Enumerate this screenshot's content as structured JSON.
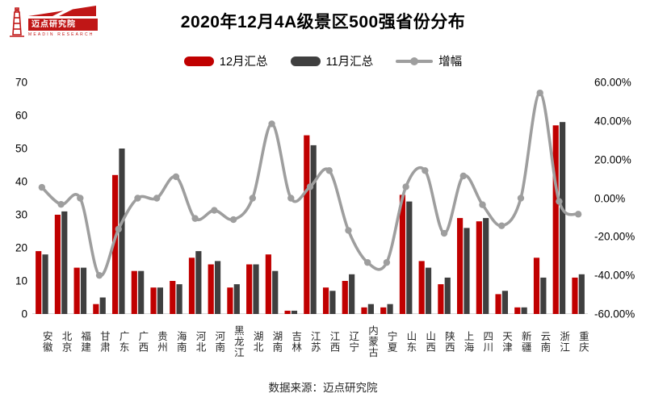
{
  "logo": {
    "name": "迈点研究院",
    "subname": "MEADIN RESEARCH",
    "brand_color": "#c01616"
  },
  "title": "2020年12月4A级景区500强省份分布",
  "legend": [
    {
      "label": "12月汇总",
      "color": "#c00000",
      "type": "bar"
    },
    {
      "label": "11月汇总",
      "color": "#3f3f3f",
      "type": "bar"
    },
    {
      "label": "增幅",
      "color": "#9e9e9e",
      "type": "line"
    }
  ],
  "footer": "数据来源：迈点研究院",
  "colors": {
    "bar_dec": "#c00000",
    "bar_nov": "#3f3f3f",
    "line": "#9e9e9e",
    "axis_line": "#d9d9d9"
  },
  "chart_data": {
    "type": "bar",
    "subtype": "bar+line combo, dual axis",
    "title": "2020年12月4A级景区500强省份分布",
    "categories": [
      "安徽",
      "北京",
      "福建",
      "甘肃",
      "广东",
      "广西",
      "贵州",
      "海南",
      "河北",
      "河南",
      "黑龙江",
      "湖北",
      "湖南",
      "吉林",
      "江苏",
      "江西",
      "辽宁",
      "内蒙古",
      "宁夏",
      "山东",
      "山西",
      "陕西",
      "上海",
      "四川",
      "天津",
      "新疆",
      "云南",
      "浙江",
      "重庆"
    ],
    "series": [
      {
        "name": "12月汇总",
        "type": "bar",
        "axis": "left",
        "color": "#c00000",
        "values": [
          19,
          30,
          14,
          3,
          42,
          13,
          8,
          10,
          17,
          15,
          8,
          15,
          18,
          1,
          54,
          8,
          10,
          2,
          2,
          36,
          16,
          9,
          29,
          28,
          6,
          2,
          17,
          57,
          11
        ]
      },
      {
        "name": "11月汇总",
        "type": "bar",
        "axis": "left",
        "color": "#3f3f3f",
        "values": [
          18,
          31,
          14,
          5,
          50,
          13,
          8,
          9,
          19,
          16,
          9,
          15,
          13,
          1,
          51,
          7,
          12,
          3,
          3,
          34,
          14,
          11,
          26,
          29,
          7,
          2,
          11,
          58,
          12
        ]
      },
      {
        "name": "增幅",
        "type": "line",
        "axis": "right",
        "color": "#9e9e9e",
        "values_pct": [
          5.6,
          -3.2,
          0,
          -40,
          -16,
          0,
          0,
          11.1,
          -10.5,
          -6.3,
          -11.1,
          0,
          38.5,
          0,
          5.9,
          14.3,
          -16.7,
          -33.3,
          -33.3,
          5.9,
          14.3,
          -18.2,
          11.5,
          -3.4,
          -14.3,
          0,
          54.5,
          -1.7,
          -8.3
        ]
      }
    ],
    "left_axis": {
      "min": 0,
      "max": 70,
      "ticks_top_to_bottom": [
        "70",
        "60",
        "50",
        "40",
        "30",
        "20",
        "10",
        "0"
      ]
    },
    "right_axis": {
      "min": -60,
      "max": 60,
      "ticks_top_to_bottom": [
        "60.00%",
        "40.00%",
        "20.00%",
        "0.00%",
        "-20.00%",
        "-40.00%",
        "-60.00%"
      ]
    },
    "grid": false,
    "legend_position": "top-center"
  }
}
